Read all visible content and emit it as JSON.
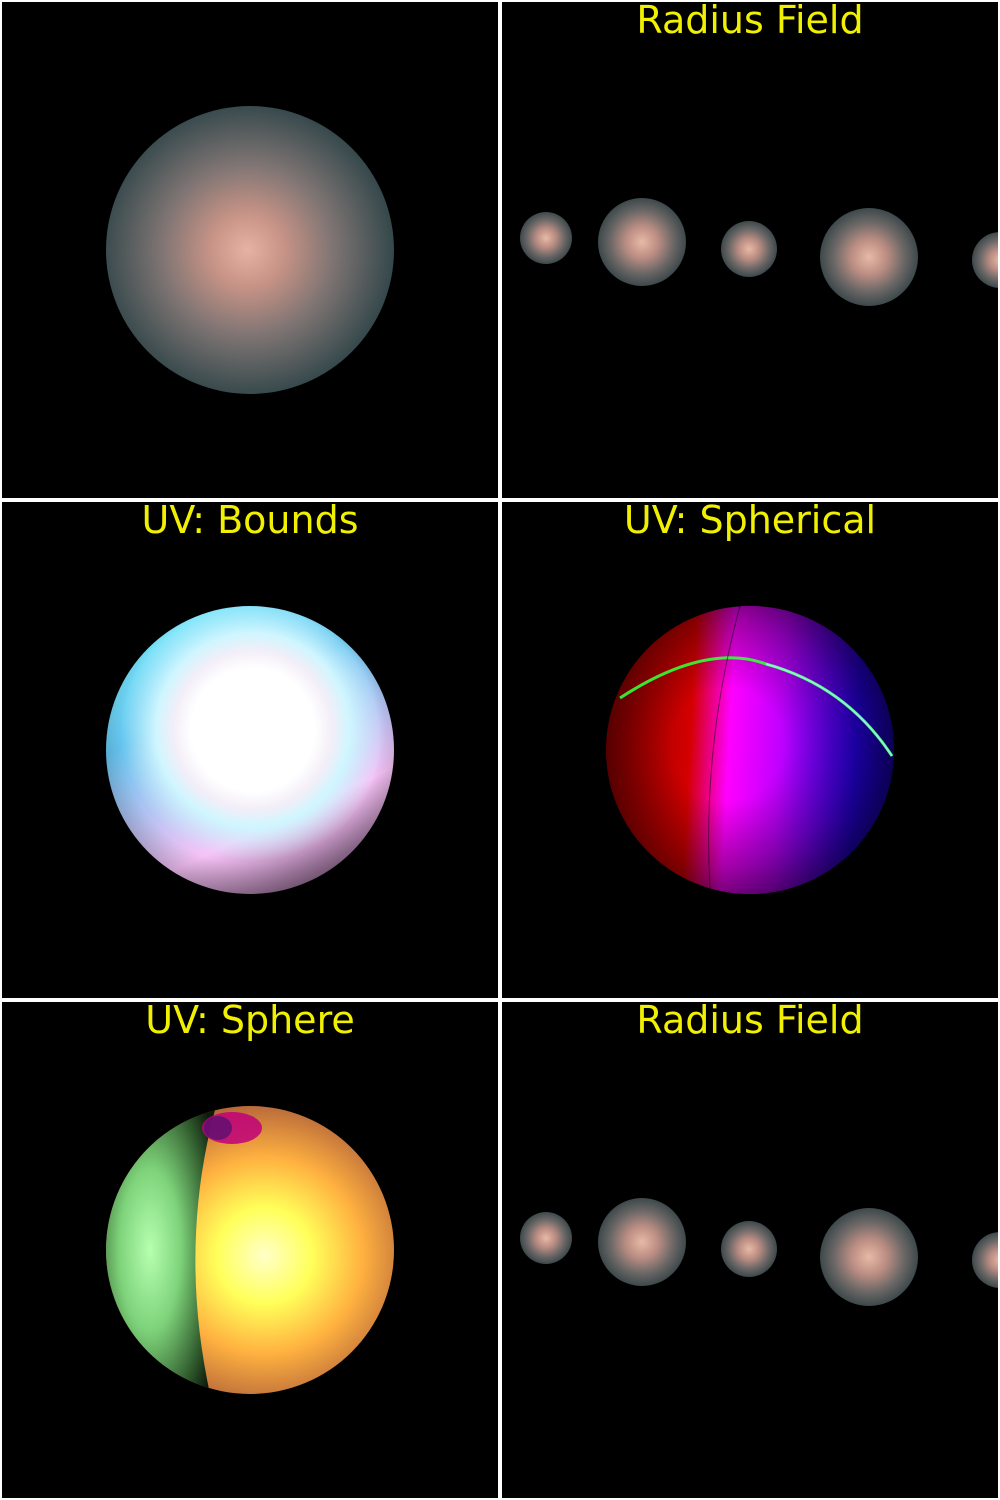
{
  "panels": [
    {
      "title": ""
    },
    {
      "title": "Radius Field"
    },
    {
      "title": "UV: Bounds"
    },
    {
      "title": "UV: Spherical"
    },
    {
      "title": "UV: Sphere"
    },
    {
      "title": "Radius Field"
    }
  ],
  "colors": {
    "background": "#000000",
    "divider": "#ffffff",
    "title_text": "#f0f000"
  }
}
